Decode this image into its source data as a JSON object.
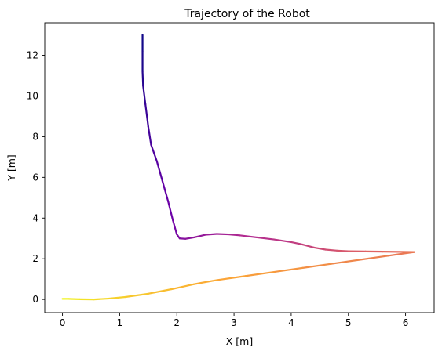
{
  "chart_data": {
    "type": "line",
    "title": "Trajectory of the Robot",
    "xlabel": "X [m]",
    "ylabel": "Y [m]",
    "xlim": [
      -0.31,
      6.5
    ],
    "ylim": [
      -0.65,
      13.6
    ],
    "xticks": [
      0,
      1,
      2,
      3,
      4,
      5,
      6
    ],
    "yticks": [
      0,
      2,
      4,
      6,
      8,
      10,
      12
    ],
    "grid": false,
    "legend": "none",
    "colormap": "plasma",
    "colormap_stops": [
      "#0d0887",
      "#6a00a8",
      "#b12a90",
      "#e16462",
      "#fca636",
      "#f0f921"
    ],
    "series": [
      {
        "points": [
          [
            1.4,
            13.0
          ],
          [
            1.4,
            12.2
          ],
          [
            1.4,
            11.2
          ],
          [
            1.41,
            10.5
          ],
          [
            1.45,
            9.6
          ],
          [
            1.5,
            8.5
          ],
          [
            1.55,
            7.6
          ],
          [
            1.65,
            6.8
          ],
          [
            1.75,
            5.8
          ],
          [
            1.85,
            4.8
          ],
          [
            1.93,
            3.9
          ],
          [
            2.0,
            3.2
          ],
          [
            2.05,
            3.0
          ],
          [
            2.15,
            2.98
          ],
          [
            2.3,
            3.05
          ],
          [
            2.5,
            3.18
          ],
          [
            2.7,
            3.22
          ],
          [
            2.9,
            3.2
          ],
          [
            3.1,
            3.15
          ],
          [
            3.4,
            3.05
          ],
          [
            3.7,
            2.95
          ],
          [
            4.0,
            2.82
          ],
          [
            4.2,
            2.7
          ],
          [
            4.4,
            2.55
          ],
          [
            4.6,
            2.45
          ],
          [
            4.8,
            2.4
          ],
          [
            5.0,
            2.37
          ],
          [
            5.3,
            2.36
          ],
          [
            5.6,
            2.35
          ],
          [
            5.9,
            2.34
          ],
          [
            6.15,
            2.33
          ],
          [
            5.7,
            2.15
          ],
          [
            5.2,
            1.95
          ],
          [
            4.7,
            1.75
          ],
          [
            4.2,
            1.55
          ],
          [
            3.7,
            1.35
          ],
          [
            3.2,
            1.15
          ],
          [
            2.7,
            0.95
          ],
          [
            2.3,
            0.75
          ],
          [
            1.9,
            0.5
          ],
          [
            1.5,
            0.28
          ],
          [
            1.1,
            0.12
          ],
          [
            0.8,
            0.04
          ],
          [
            0.55,
            0.0
          ],
          [
            0.3,
            0.01
          ],
          [
            0.1,
            0.03
          ],
          [
            0.0,
            0.03
          ]
        ]
      }
    ]
  }
}
